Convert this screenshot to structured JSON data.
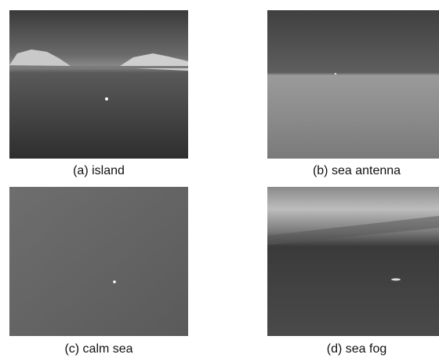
{
  "panels": [
    {
      "caption": "(a) island"
    },
    {
      "caption": "(b) sea antenna"
    },
    {
      "caption": "(c) calm sea"
    },
    {
      "caption": "(d) sea fog"
    }
  ]
}
